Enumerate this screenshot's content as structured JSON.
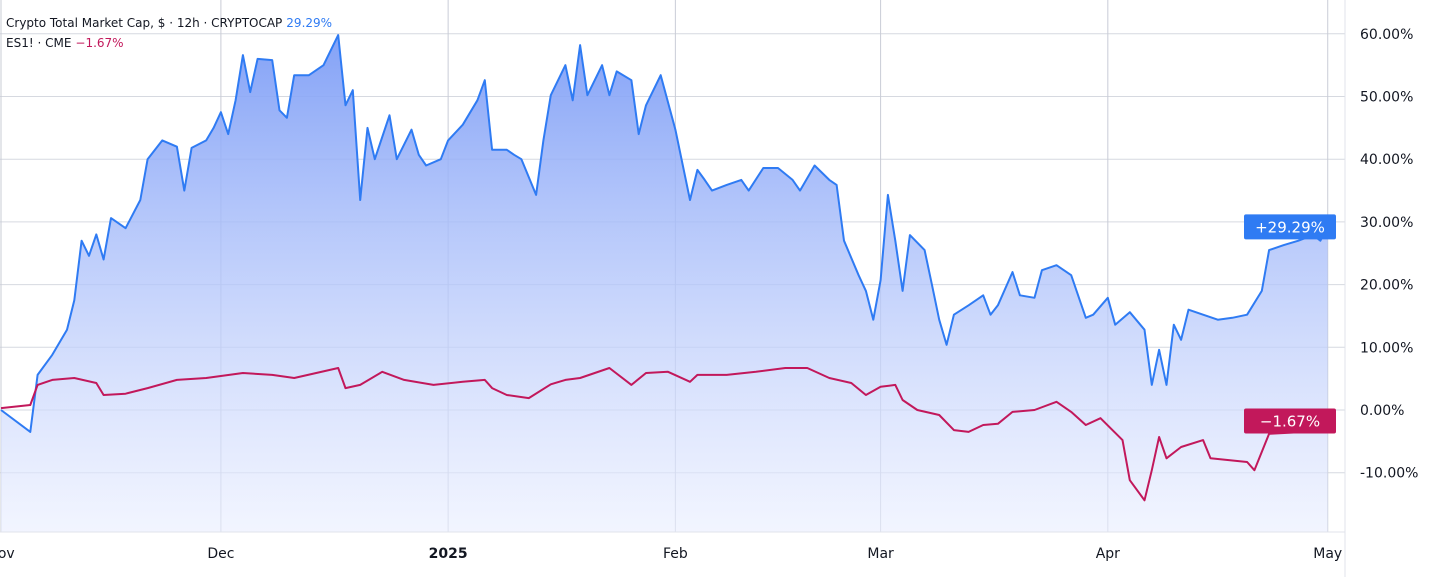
{
  "legend": {
    "series1_title": "Crypto Total Market Cap, $ · 12h · CRYPTOCAP",
    "series1_value": "29.29%",
    "series2_title": "ES1! · CME",
    "series2_value": "−1.67%"
  },
  "chart_data": {
    "type": "area",
    "yaxis_position": "right",
    "ylim": [
      -19,
      62
    ],
    "y_ticks": [
      "60.00%",
      "50.00%",
      "40.00%",
      "30.00%",
      "20.00%",
      "10.00%",
      "0.00%",
      "-10.00%"
    ],
    "y_tick_values": [
      60,
      50,
      40,
      30,
      20,
      10,
      0,
      -10
    ],
    "x_ticks": [
      {
        "date": "2024-11-01",
        "label": "Nov"
      },
      {
        "date": "2024-12-01",
        "label": "Dec"
      },
      {
        "date": "2025-01-01",
        "label": "2025"
      },
      {
        "date": "2025-02-01",
        "label": "Feb"
      },
      {
        "date": "2025-03-01",
        "label": "Mar"
      },
      {
        "date": "2025-04-01",
        "label": "Apr"
      },
      {
        "date": "2025-05-01",
        "label": "May"
      }
    ],
    "grid": true,
    "series": [
      {
        "name": "Crypto Total Market Cap, $ · 12h · CRYPTOCAP",
        "color": "#2f7bf3",
        "last_label": "+29.29%",
        "points": [
          [
            "2024-11-01",
            0
          ],
          [
            "2024-11-05",
            -3.5
          ],
          [
            "2024-11-06",
            5.6
          ],
          [
            "2024-11-08",
            8.8
          ],
          [
            "2024-11-10",
            12.8
          ],
          [
            "2024-11-11",
            17.5
          ],
          [
            "2024-11-12",
            27
          ],
          [
            "2024-11-13",
            24.6
          ],
          [
            "2024-11-14",
            28
          ],
          [
            "2024-11-15",
            24
          ],
          [
            "2024-11-16",
            30.6
          ],
          [
            "2024-11-18",
            29
          ],
          [
            "2024-11-20",
            33.5
          ],
          [
            "2024-11-21",
            40
          ],
          [
            "2024-11-23",
            43
          ],
          [
            "2024-11-25",
            42
          ],
          [
            "2024-11-26",
            35
          ],
          [
            "2024-11-27",
            41.8
          ],
          [
            "2024-11-29",
            43
          ],
          [
            "2024-11-30",
            45
          ],
          [
            "2024-12-01",
            47.5
          ],
          [
            "2024-12-02",
            44
          ],
          [
            "2024-12-03",
            49.4
          ],
          [
            "2024-12-04",
            56.6
          ],
          [
            "2024-12-05",
            50.7
          ],
          [
            "2024-12-06",
            56
          ],
          [
            "2024-12-08",
            55.8
          ],
          [
            "2024-12-09",
            47.8
          ],
          [
            "2024-12-10",
            46.6
          ],
          [
            "2024-12-11",
            53.4
          ],
          [
            "2024-12-13",
            53.4
          ],
          [
            "2024-12-15",
            55
          ],
          [
            "2024-12-17",
            59.8
          ],
          [
            "2024-12-18",
            48.6
          ],
          [
            "2024-12-19",
            51
          ],
          [
            "2024-12-20",
            33.5
          ],
          [
            "2024-12-21",
            45
          ],
          [
            "2024-12-22",
            40
          ],
          [
            "2024-12-24",
            47
          ],
          [
            "2024-12-25",
            40
          ],
          [
            "2024-12-27",
            44.7
          ],
          [
            "2024-12-28",
            40.7
          ],
          [
            "2024-12-29",
            39
          ],
          [
            "2024-12-31",
            40
          ],
          [
            "2025-01-01",
            43
          ],
          [
            "2025-01-03",
            45.5
          ],
          [
            "2025-01-05",
            49.4
          ],
          [
            "2025-01-06",
            52.6
          ],
          [
            "2025-01-07",
            41.5
          ],
          [
            "2025-01-09",
            41.5
          ],
          [
            "2025-01-10",
            40.7
          ],
          [
            "2025-01-11",
            40
          ],
          [
            "2025-01-13",
            34.3
          ],
          [
            "2025-01-14",
            43
          ],
          [
            "2025-01-15",
            50.2
          ],
          [
            "2025-01-17",
            55
          ],
          [
            "2025-01-18",
            49.4
          ],
          [
            "2025-01-19",
            58.2
          ],
          [
            "2025-01-20",
            50.2
          ],
          [
            "2025-01-22",
            55
          ],
          [
            "2025-01-23",
            50.2
          ],
          [
            "2025-01-24",
            54
          ],
          [
            "2025-01-26",
            52.6
          ],
          [
            "2025-01-27",
            44
          ],
          [
            "2025-01-28",
            48.6
          ],
          [
            "2025-01-30",
            53.4
          ],
          [
            "2025-02-01",
            44.7
          ],
          [
            "2025-02-03",
            33.5
          ],
          [
            "2025-02-04",
            38.3
          ],
          [
            "2025-02-05",
            36.7
          ],
          [
            "2025-02-06",
            35
          ],
          [
            "2025-02-08",
            35.9
          ],
          [
            "2025-02-10",
            36.7
          ],
          [
            "2025-02-11",
            35
          ],
          [
            "2025-02-13",
            38.6
          ],
          [
            "2025-02-15",
            38.6
          ],
          [
            "2025-02-17",
            36.7
          ],
          [
            "2025-02-18",
            35
          ],
          [
            "2025-02-20",
            39
          ],
          [
            "2025-02-22",
            36.7
          ],
          [
            "2025-02-23",
            35.9
          ],
          [
            "2025-02-24",
            27
          ],
          [
            "2025-02-26",
            21.5
          ],
          [
            "2025-02-27",
            19
          ],
          [
            "2025-02-28",
            14.4
          ],
          [
            "2025-03-01",
            20.7
          ],
          [
            "2025-03-02",
            34.3
          ],
          [
            "2025-03-03",
            27
          ],
          [
            "2025-03-04",
            19
          ],
          [
            "2025-03-05",
            27.9
          ],
          [
            "2025-03-07",
            25.5
          ],
          [
            "2025-03-08",
            20
          ],
          [
            "2025-03-09",
            14.4
          ],
          [
            "2025-03-10",
            10.4
          ],
          [
            "2025-03-11",
            15.2
          ],
          [
            "2025-03-13",
            16.7
          ],
          [
            "2025-03-15",
            18.3
          ],
          [
            "2025-03-16",
            15.2
          ],
          [
            "2025-03-17",
            16.7
          ],
          [
            "2025-03-19",
            22
          ],
          [
            "2025-03-20",
            18.3
          ],
          [
            "2025-03-22",
            17.9
          ],
          [
            "2025-03-23",
            22.3
          ],
          [
            "2025-03-25",
            23.1
          ],
          [
            "2025-03-27",
            21.5
          ],
          [
            "2025-03-29",
            14.7
          ],
          [
            "2025-03-30",
            15.2
          ],
          [
            "2025-04-01",
            17.9
          ],
          [
            "2025-04-02",
            13.6
          ],
          [
            "2025-04-04",
            15.6
          ],
          [
            "2025-04-06",
            12.8
          ],
          [
            "2025-04-07",
            4
          ],
          [
            "2025-04-08",
            9.6
          ],
          [
            "2025-04-09",
            4
          ],
          [
            "2025-04-10",
            13.6
          ],
          [
            "2025-04-11",
            11.2
          ],
          [
            "2025-04-12",
            16
          ],
          [
            "2025-04-14",
            15.2
          ],
          [
            "2025-04-16",
            14.4
          ],
          [
            "2025-04-18",
            14.7
          ],
          [
            "2025-04-20",
            15.2
          ],
          [
            "2025-04-22",
            19
          ],
          [
            "2025-04-23",
            25.5
          ],
          [
            "2025-04-25",
            26.3
          ],
          [
            "2025-04-27",
            27
          ],
          [
            "2025-04-29",
            27.9
          ],
          [
            "2025-04-30",
            27
          ],
          [
            "2025-05-01",
            29.29
          ]
        ]
      },
      {
        "name": "ES1! · CME",
        "color": "#c2185b",
        "last_label": "−1.67%",
        "points": [
          [
            "2024-11-01",
            0.3
          ],
          [
            "2024-11-05",
            0.8
          ],
          [
            "2024-11-06",
            4
          ],
          [
            "2024-11-08",
            4.8
          ],
          [
            "2024-11-11",
            5.1
          ],
          [
            "2024-11-14",
            4.3
          ],
          [
            "2024-11-15",
            2.4
          ],
          [
            "2024-11-18",
            2.6
          ],
          [
            "2024-11-21",
            3.5
          ],
          [
            "2024-11-25",
            4.8
          ],
          [
            "2024-11-29",
            5.1
          ],
          [
            "2024-12-04",
            5.9
          ],
          [
            "2024-12-08",
            5.6
          ],
          [
            "2024-12-11",
            5.1
          ],
          [
            "2024-12-17",
            6.7
          ],
          [
            "2024-12-18",
            3.5
          ],
          [
            "2024-12-20",
            4
          ],
          [
            "2024-12-23",
            6.1
          ],
          [
            "2024-12-26",
            4.8
          ],
          [
            "2024-12-30",
            4
          ],
          [
            "2025-01-03",
            4.5
          ],
          [
            "2025-01-06",
            4.8
          ],
          [
            "2025-01-07",
            3.5
          ],
          [
            "2025-01-09",
            2.4
          ],
          [
            "2025-01-12",
            1.9
          ],
          [
            "2025-01-15",
            4.1
          ],
          [
            "2025-01-17",
            4.8
          ],
          [
            "2025-01-19",
            5.1
          ],
          [
            "2025-01-23",
            6.7
          ],
          [
            "2025-01-26",
            4
          ],
          [
            "2025-01-28",
            5.9
          ],
          [
            "2025-01-31",
            6.1
          ],
          [
            "2025-02-03",
            4.5
          ],
          [
            "2025-02-04",
            5.6
          ],
          [
            "2025-02-08",
            5.6
          ],
          [
            "2025-02-12",
            6.1
          ],
          [
            "2025-02-16",
            6.7
          ],
          [
            "2025-02-19",
            6.7
          ],
          [
            "2025-02-22",
            5.1
          ],
          [
            "2025-02-25",
            4.3
          ],
          [
            "2025-02-27",
            2.4
          ],
          [
            "2025-03-01",
            3.7
          ],
          [
            "2025-03-03",
            4
          ],
          [
            "2025-03-04",
            1.6
          ],
          [
            "2025-03-06",
            0
          ],
          [
            "2025-03-09",
            -0.8
          ],
          [
            "2025-03-11",
            -3.2
          ],
          [
            "2025-03-13",
            -3.5
          ],
          [
            "2025-03-15",
            -2.4
          ],
          [
            "2025-03-17",
            -2.2
          ],
          [
            "2025-03-19",
            -0.3
          ],
          [
            "2025-03-22",
            0
          ],
          [
            "2025-03-25",
            1.3
          ],
          [
            "2025-03-27",
            -0.3
          ],
          [
            "2025-03-29",
            -2.4
          ],
          [
            "2025-03-31",
            -1.3
          ],
          [
            "2025-04-03",
            -4.8
          ],
          [
            "2025-04-04",
            -11.2
          ],
          [
            "2025-04-06",
            -14.4
          ],
          [
            "2025-04-07",
            -9.6
          ],
          [
            "2025-04-08",
            -4.3
          ],
          [
            "2025-04-09",
            -7.7
          ],
          [
            "2025-04-11",
            -5.9
          ],
          [
            "2025-04-14",
            -4.8
          ],
          [
            "2025-04-15",
            -7.7
          ],
          [
            "2025-04-20",
            -8.3
          ],
          [
            "2025-04-21",
            -9.6
          ],
          [
            "2025-04-23",
            -3.8
          ],
          [
            "2025-04-28",
            -3.5
          ],
          [
            "2025-05-01",
            -1.67
          ]
        ]
      }
    ]
  }
}
